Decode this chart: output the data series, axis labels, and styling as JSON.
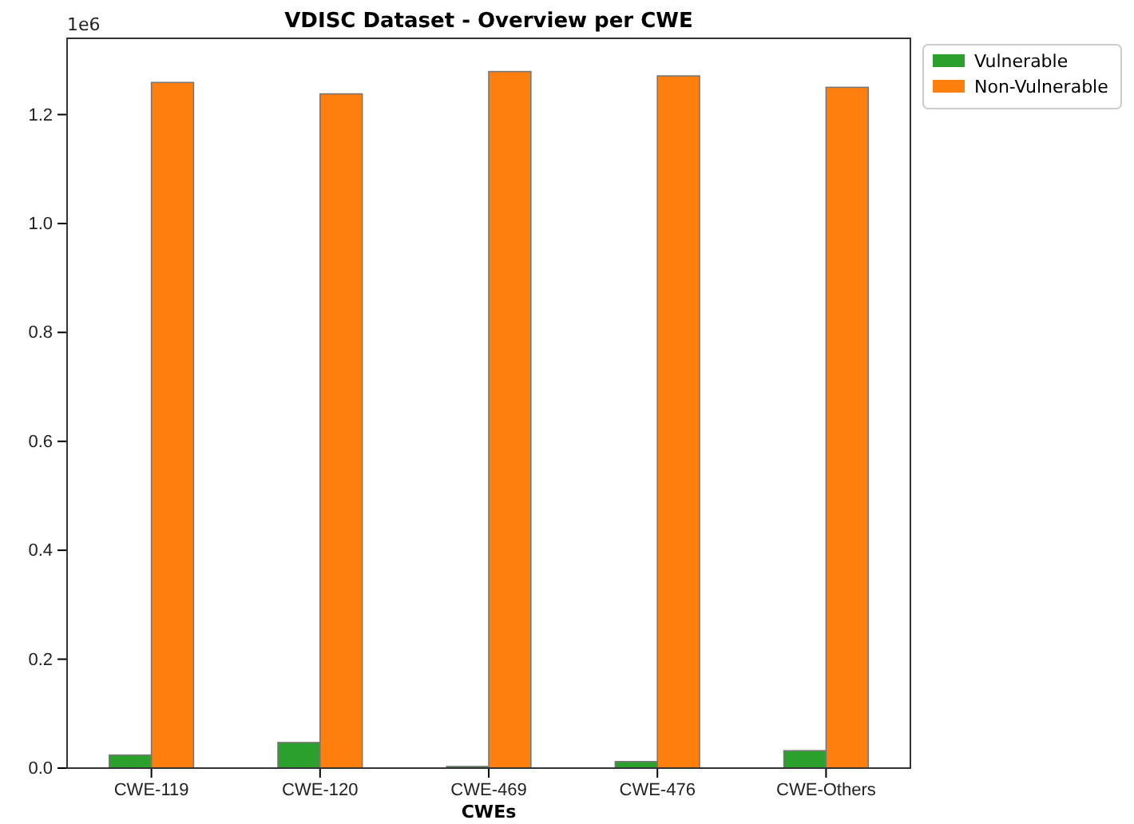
{
  "chart_data": {
    "type": "bar",
    "title": "VDISC Dataset - Overview per CWE",
    "xlabel": "CWEs",
    "annotations": [
      "1e6"
    ],
    "categories": [
      "CWE-119",
      "CWE-120",
      "CWE-469",
      "CWE-476",
      "CWE-Others"
    ],
    "series": [
      {
        "name": "Vulnerable",
        "color": "#2ca02c",
        "values": [
          0.024,
          0.047,
          0.003,
          0.012,
          0.032
        ]
      },
      {
        "name": "Non-Vulnerable",
        "color": "#ff7f0e",
        "values": [
          1.259,
          1.238,
          1.279,
          1.271,
          1.25
        ]
      }
    ],
    "ylim": [
      0,
      1.34
    ],
    "yticks": [
      {
        "value": 0,
        "label": "0.0"
      },
      0.2,
      0.4,
      0.6,
      0.8,
      {
        "value": 1,
        "label": "1.0"
      },
      1.2
    ],
    "legend": "right",
    "grid": false
  }
}
